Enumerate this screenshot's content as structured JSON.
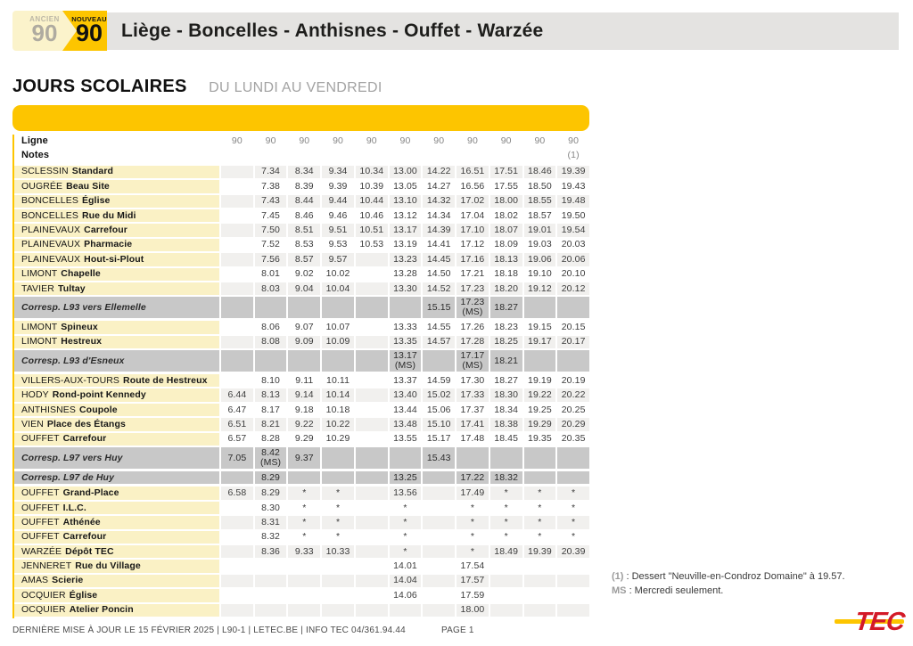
{
  "colors": {
    "yellow": "#FDC500",
    "label_yellow": "#FAF1C5",
    "corresp_gray": "#C8C8C8",
    "zebra": "#F1F0EE",
    "band": "#E4E3E1",
    "pale_badge": "#FBF3CB",
    "red": "#D31A28"
  },
  "header": {
    "old_badge": {
      "label": "ANCIEN",
      "number": "90"
    },
    "new_badge": {
      "label": "NOUVEAU",
      "number": "90"
    },
    "route_title": "Liège - Boncelles - Anthisnes - Ouffet - Warzée"
  },
  "section": {
    "title": "JOURS SCOLAIRES",
    "subtitle": "DU LUNDI AU VENDREDI"
  },
  "table": {
    "ligne_label": "Ligne",
    "notes_label": "Notes",
    "line_numbers": [
      "90",
      "90",
      "90",
      "90",
      "90",
      "90",
      "90",
      "90",
      "90",
      "90",
      "90"
    ],
    "note_marks": [
      "",
      "",
      "",
      "",
      "",
      "",
      "",
      "",
      "",
      "",
      "(1)"
    ],
    "rows": [
      {
        "type": "stop",
        "place": "SCLESSIN",
        "stop": "Standard",
        "times": [
          "",
          "7.34",
          "8.34",
          "9.34",
          "10.34",
          "13.00",
          "14.22",
          "16.51",
          "17.51",
          "18.46",
          "19.39"
        ]
      },
      {
        "type": "stop",
        "place": "OUGRÉE",
        "stop": "Beau Site",
        "times": [
          "",
          "7.38",
          "8.39",
          "9.39",
          "10.39",
          "13.05",
          "14.27",
          "16.56",
          "17.55",
          "18.50",
          "19.43"
        ]
      },
      {
        "type": "stop",
        "place": "BONCELLES",
        "stop": "Église",
        "times": [
          "",
          "7.43",
          "8.44",
          "9.44",
          "10.44",
          "13.10",
          "14.32",
          "17.02",
          "18.00",
          "18.55",
          "19.48"
        ]
      },
      {
        "type": "stop",
        "place": "BONCELLES",
        "stop": "Rue du Midi",
        "times": [
          "",
          "7.45",
          "8.46",
          "9.46",
          "10.46",
          "13.12",
          "14.34",
          "17.04",
          "18.02",
          "18.57",
          "19.50"
        ]
      },
      {
        "type": "stop",
        "place": "PLAINEVAUX",
        "stop": "Carrefour",
        "times": [
          "",
          "7.50",
          "8.51",
          "9.51",
          "10.51",
          "13.17",
          "14.39",
          "17.10",
          "18.07",
          "19.01",
          "19.54"
        ]
      },
      {
        "type": "stop",
        "place": "PLAINEVAUX",
        "stop": "Pharmacie",
        "times": [
          "",
          "7.52",
          "8.53",
          "9.53",
          "10.53",
          "13.19",
          "14.41",
          "17.12",
          "18.09",
          "19.03",
          "20.03"
        ]
      },
      {
        "type": "stop",
        "place": "PLAINEVAUX",
        "stop": "Hout-si-Plout",
        "times": [
          "",
          "7.56",
          "8.57",
          "9.57",
          "",
          "13.23",
          "14.45",
          "17.16",
          "18.13",
          "19.06",
          "20.06"
        ]
      },
      {
        "type": "stop",
        "place": "LIMONT",
        "stop": "Chapelle",
        "times": [
          "",
          "8.01",
          "9.02",
          "10.02",
          "",
          "13.28",
          "14.50",
          "17.21",
          "18.18",
          "19.10",
          "20.10"
        ]
      },
      {
        "type": "stop",
        "place": "TAVIER",
        "stop": "Tultay",
        "times": [
          "",
          "8.03",
          "9.04",
          "10.04",
          "",
          "13.30",
          "14.52",
          "17.23",
          "18.20",
          "19.12",
          "20.12"
        ]
      },
      {
        "type": "corresp",
        "label": "Corresp. L93 vers Ellemelle",
        "times": [
          "",
          "",
          "",
          "",
          "",
          "",
          "15.15",
          "17.23\n(MS)",
          "18.27",
          "",
          ""
        ]
      },
      {
        "type": "stop",
        "place": "LIMONT",
        "stop": "Spineux",
        "times": [
          "",
          "8.06",
          "9.07",
          "10.07",
          "",
          "13.33",
          "14.55",
          "17.26",
          "18.23",
          "19.15",
          "20.15"
        ]
      },
      {
        "type": "stop",
        "place": "LIMONT",
        "stop": "Hestreux",
        "times": [
          "",
          "8.08",
          "9.09",
          "10.09",
          "",
          "13.35",
          "14.57",
          "17.28",
          "18.25",
          "19.17",
          "20.17"
        ]
      },
      {
        "type": "corresp",
        "label": "Corresp. L93 d'Esneux",
        "times": [
          "",
          "",
          "",
          "",
          "",
          "13.17\n(MS)",
          "",
          "17.17\n(MS)",
          "18.21",
          "",
          ""
        ]
      },
      {
        "type": "stop",
        "place": "VILLERS-AUX-TOURS",
        "stop": "Route de Hestreux",
        "times": [
          "",
          "8.10",
          "9.11",
          "10.11",
          "",
          "13.37",
          "14.59",
          "17.30",
          "18.27",
          "19.19",
          "20.19"
        ]
      },
      {
        "type": "stop",
        "place": "HODY",
        "stop": "Rond-point Kennedy",
        "times": [
          "6.44",
          "8.13",
          "9.14",
          "10.14",
          "",
          "13.40",
          "15.02",
          "17.33",
          "18.30",
          "19.22",
          "20.22"
        ]
      },
      {
        "type": "stop",
        "place": "ANTHISNES",
        "stop": "Coupole",
        "times": [
          "6.47",
          "8.17",
          "9.18",
          "10.18",
          "",
          "13.44",
          "15.06",
          "17.37",
          "18.34",
          "19.25",
          "20.25"
        ]
      },
      {
        "type": "stop",
        "place": "VIEN",
        "stop": "Place des Étangs",
        "times": [
          "6.51",
          "8.21",
          "9.22",
          "10.22",
          "",
          "13.48",
          "15.10",
          "17.41",
          "18.38",
          "19.29",
          "20.29"
        ]
      },
      {
        "type": "stop",
        "place": "OUFFET",
        "stop": "Carrefour",
        "times": [
          "6.57",
          "8.28",
          "9.29",
          "10.29",
          "",
          "13.55",
          "15.17",
          "17.48",
          "18.45",
          "19.35",
          "20.35"
        ]
      },
      {
        "type": "corresp",
        "label": "Corresp. L97 vers Huy",
        "times": [
          "7.05",
          "8.42\n(MS)",
          "9.37",
          "",
          "",
          "",
          "15.43",
          "",
          "",
          "",
          ""
        ]
      },
      {
        "type": "corresp",
        "label": "Corresp. L97 de Huy",
        "times": [
          "",
          "8.29",
          "",
          "",
          "",
          "13.25",
          "",
          "17.22",
          "18.32",
          "",
          ""
        ]
      },
      {
        "type": "stop",
        "place": "OUFFET",
        "stop": "Grand-Place",
        "times": [
          "6.58",
          "8.29",
          "*",
          "*",
          "",
          "13.56",
          "",
          "17.49",
          "*",
          "*",
          "*"
        ]
      },
      {
        "type": "stop",
        "place": "OUFFET",
        "stop": "I.L.C.",
        "times": [
          "",
          "8.30",
          "*",
          "*",
          "",
          "*",
          "",
          "*",
          "*",
          "*",
          "*"
        ]
      },
      {
        "type": "stop",
        "place": "OUFFET",
        "stop": "Athénée",
        "times": [
          "",
          "8.31",
          "*",
          "*",
          "",
          "*",
          "",
          "*",
          "*",
          "*",
          "*"
        ]
      },
      {
        "type": "stop",
        "place": "OUFFET",
        "stop": "Carrefour",
        "times": [
          "",
          "8.32",
          "*",
          "*",
          "",
          "*",
          "",
          "*",
          "*",
          "*",
          "*"
        ]
      },
      {
        "type": "stop",
        "place": "WARZÉE",
        "stop": "Dépôt TEC",
        "times": [
          "",
          "8.36",
          "9.33",
          "10.33",
          "",
          "*",
          "",
          "*",
          "18.49",
          "19.39",
          "20.39"
        ]
      },
      {
        "type": "stop",
        "place": "JENNERET",
        "stop": "Rue du Village",
        "times": [
          "",
          "",
          "",
          "",
          "",
          "14.01",
          "",
          "17.54",
          "",
          "",
          ""
        ]
      },
      {
        "type": "stop",
        "place": "AMAS",
        "stop": "Scierie",
        "times": [
          "",
          "",
          "",
          "",
          "",
          "14.04",
          "",
          "17.57",
          "",
          "",
          ""
        ]
      },
      {
        "type": "stop",
        "place": "OCQUIER",
        "stop": "Église",
        "times": [
          "",
          "",
          "",
          "",
          "",
          "14.06",
          "",
          "17.59",
          "",
          "",
          ""
        ]
      },
      {
        "type": "stop",
        "place": "OCQUIER",
        "stop": "Atelier Poncin",
        "times": [
          "",
          "",
          "",
          "",
          "",
          "",
          "",
          "18.00",
          "",
          "",
          ""
        ]
      }
    ]
  },
  "footnotes": [
    {
      "key": "(1)",
      "text": ": Dessert \"Neuville-en-Condroz Domaine\" à 19.57."
    },
    {
      "key": "MS",
      "text": ": Mercredi seulement."
    }
  ],
  "footer": {
    "left": "DERNIÈRE MISE À JOUR LE 15 FÉVRIER 2025  |  L90-1  |  LETEC.BE  |  INFO TEC 04/361.94.44",
    "page": "PAGE 1"
  },
  "logo": {
    "text": "TEC"
  }
}
